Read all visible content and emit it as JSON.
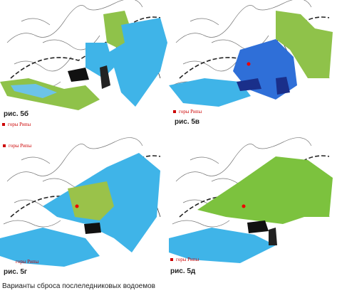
{
  "panels": [
    {
      "figure": "рис. 5б",
      "mountains": "горы Рипы"
    },
    {
      "figure": "рис. 5в",
      "mountains": "горы Рипы"
    },
    {
      "figure": "рис. 5г",
      "mountains": "горы Рипы",
      "mountains_upper": "горы Рипы"
    },
    {
      "figure": "рис. 5д",
      "mountains": "горы Рипы"
    }
  ],
  "caption": "Варианты сброса послеледниковых водоемов"
}
